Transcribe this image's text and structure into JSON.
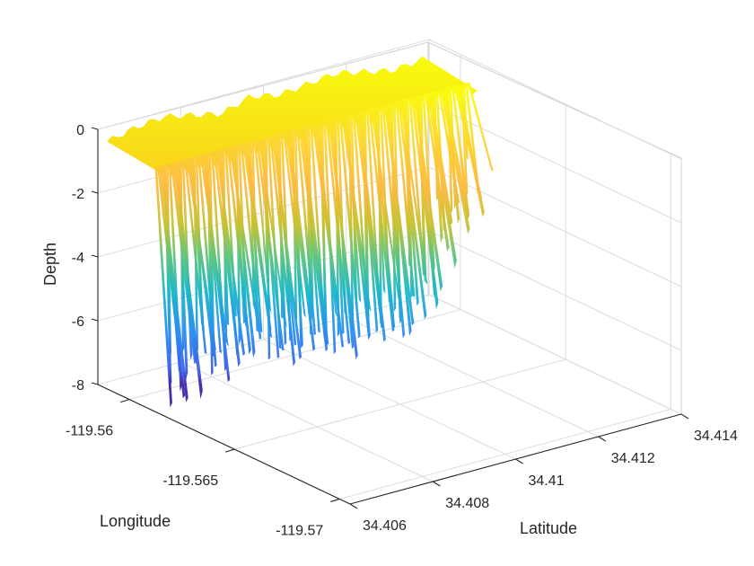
{
  "chart_data": {
    "type": "surface3d",
    "title": "",
    "xlabel": "Longitude",
    "ylabel": "Latitude",
    "zlabel": "Depth",
    "x_ticks": [
      "-119.56",
      "-119.565",
      "-119.57"
    ],
    "y_ticks": [
      "34.406",
      "34.408",
      "34.41",
      "34.412",
      "34.414"
    ],
    "z_ticks": [
      "0",
      "-2",
      "-4",
      "-6",
      "-8"
    ],
    "xlim": [
      -119.5585,
      -119.5705
    ],
    "ylim": [
      34.406,
      34.414
    ],
    "zlim": [
      -8,
      0
    ],
    "grid": true,
    "colormap": "parula",
    "colormap_stops": [
      "#3e26a8",
      "#2f7cf5",
      "#12b2e4",
      "#2ebf9e",
      "#a6c13a",
      "#fcba3d",
      "#f5e625",
      "#f9fb0e"
    ],
    "description": "Bathymetry surface: shallow plateau near 0 along edges, dropping to about -6 to -7.5 in deep troughs toward the front, deepest point near -7.8 at the Longitude -119.5585 edge.",
    "surface_profile": {
      "top_edge_depth": [
        -0.4,
        -0.2,
        -0.1,
        -0.3,
        -0.5,
        -0.2,
        -0.4,
        -0.3,
        -0.2,
        -0.4,
        -0.6,
        -0.5
      ],
      "front_edge_min_depth": [
        -7.8,
        -6.2,
        -6.8,
        -5.9,
        -6.9,
        -6.6,
        -7.1,
        -6.8,
        -7.0,
        -6.3,
        -4.2,
        -3.5
      ]
    }
  }
}
